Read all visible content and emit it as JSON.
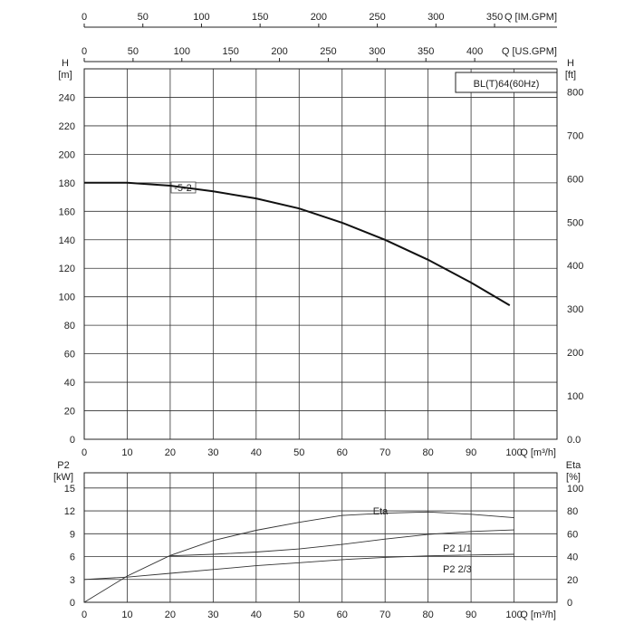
{
  "chart_data": [
    {
      "type": "line",
      "title": "BL(T)64(60Hz)",
      "xlabel": "Q [m³/h]",
      "x_ticks": [
        "0",
        "10",
        "20",
        "30",
        "40",
        "50",
        "60",
        "70",
        "80",
        "90",
        "100"
      ],
      "xlim": [
        0,
        110
      ],
      "ylabel_left": "H",
      "ylabel_left_unit": "[m]",
      "y_ticks_left": [
        "0",
        "20",
        "40",
        "60",
        "80",
        "100",
        "120",
        "140",
        "160",
        "180",
        "200",
        "220",
        "240"
      ],
      "ylim_left": [
        0,
        260
      ],
      "ylabel_right": "H",
      "ylabel_right_unit": "[ft]",
      "y_ticks_right": [
        "0.0",
        "100",
        "200",
        "300",
        "400",
        "500",
        "600",
        "700",
        "800"
      ],
      "top_axis_1_label": "Q [IM.GPM]",
      "top_axis_1_ticks": [
        "0",
        "50",
        "100",
        "150",
        "200",
        "250",
        "300",
        "350"
      ],
      "top_axis_2_label": "Q [US.GPM]",
      "top_axis_2_ticks": [
        "0",
        "50",
        "100",
        "150",
        "200",
        "250",
        "300",
        "350",
        "400"
      ],
      "grid": true,
      "series": [
        {
          "name": "-5-2",
          "x": [
            0,
            10,
            20,
            30,
            40,
            50,
            60,
            70,
            80,
            90,
            99
          ],
          "y": [
            180,
            180,
            178,
            174,
            169,
            162,
            152,
            140,
            126,
            110,
            94
          ]
        }
      ]
    },
    {
      "type": "line",
      "xlabel": "Q [m³/h]",
      "x_ticks": [
        "0",
        "10",
        "20",
        "30",
        "40",
        "50",
        "60",
        "70",
        "80",
        "90",
        "100"
      ],
      "xlim": [
        0,
        110
      ],
      "ylabel_left": "P2",
      "ylabel_left_unit": "[kW]",
      "y_ticks_left": [
        "0",
        "3",
        "6",
        "9",
        "12",
        "15"
      ],
      "ylim_left": [
        0,
        17
      ],
      "ylabel_right": "Eta",
      "ylabel_right_unit": "[%]",
      "y_ticks_right": [
        "0",
        "20",
        "40",
        "60",
        "80",
        "100"
      ],
      "ylim_right": [
        0,
        113.3
      ],
      "grid": true,
      "series": [
        {
          "name": "Eta",
          "axis": "right",
          "x": [
            0,
            10,
            20,
            30,
            40,
            50,
            60,
            70,
            80,
            90,
            100
          ],
          "y": [
            0,
            23,
            41,
            54,
            63,
            70,
            76,
            78,
            79,
            77,
            74
          ]
        },
        {
          "name": "P2  1/1",
          "axis": "left",
          "x": [
            20,
            30,
            40,
            50,
            60,
            70,
            80,
            90,
            100
          ],
          "y": [
            6.1,
            6.3,
            6.6,
            7.0,
            7.6,
            8.3,
            8.9,
            9.3,
            9.5
          ]
        },
        {
          "name": "P2  2/3",
          "axis": "left",
          "x": [
            0,
            10,
            20,
            30,
            40,
            50,
            60,
            70,
            80,
            90,
            100
          ],
          "y": [
            3.0,
            3.3,
            3.8,
            4.3,
            4.8,
            5.2,
            5.6,
            5.9,
            6.1,
            6.2,
            6.3
          ]
        }
      ]
    }
  ]
}
